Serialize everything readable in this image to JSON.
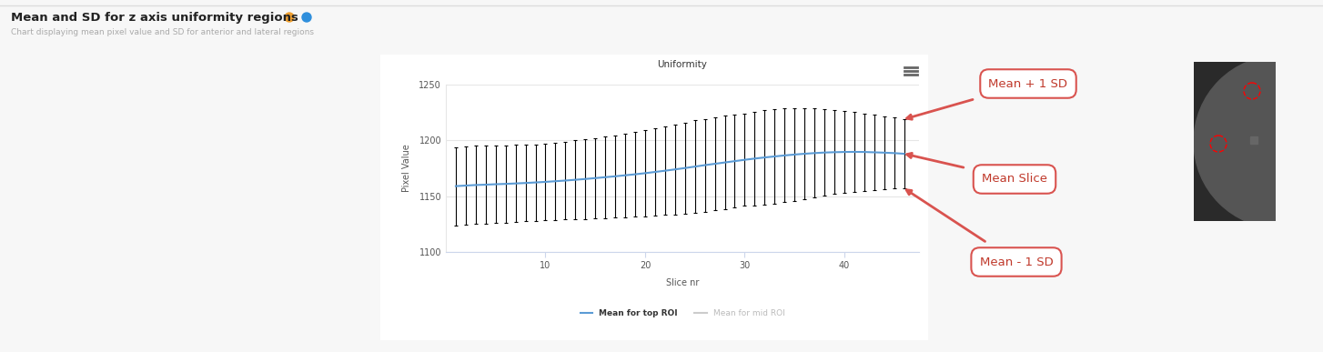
{
  "header": {
    "title": "Mean and SD for z axis uniformity regions",
    "subtitle": "Chart displaying mean pixel value and SD for anterior and lateral regions"
  },
  "chart_data": {
    "type": "line",
    "title": "Uniformity",
    "x_label": "Slice nr",
    "y_label": "Pixel Value",
    "x": [
      1,
      2,
      3,
      4,
      5,
      6,
      7,
      8,
      9,
      10,
      11,
      12,
      13,
      14,
      15,
      16,
      17,
      18,
      19,
      20,
      21,
      22,
      23,
      24,
      25,
      26,
      27,
      28,
      29,
      30,
      31,
      32,
      33,
      34,
      35,
      36,
      37,
      38,
      39,
      40,
      41,
      42,
      43,
      44,
      45,
      46
    ],
    "series": [
      {
        "name": "Mean for top ROI",
        "color": "#5b9bd5",
        "values": [
          1159,
          1159.5,
          1160,
          1160.3,
          1160.7,
          1161,
          1161.4,
          1161.8,
          1162.3,
          1162.8,
          1163.4,
          1164,
          1164.7,
          1165.4,
          1166.2,
          1167,
          1167.8,
          1168.7,
          1169.6,
          1170.6,
          1171.7,
          1172.8,
          1174,
          1175.2,
          1176.5,
          1177.8,
          1179,
          1180.2,
          1181.4,
          1182.6,
          1183.7,
          1184.7,
          1185.6,
          1186.5,
          1187.3,
          1188,
          1188.6,
          1189.1,
          1189.4,
          1189.6,
          1189.7,
          1189.6,
          1189.3,
          1189,
          1188.6,
          1188
        ],
        "sd": [
          35,
          35,
          35,
          34.8,
          34.7,
          34.6,
          34.5,
          34.4,
          34.3,
          34.2,
          34.5,
          34.9,
          35.3,
          35.7,
          36.1,
          36.5,
          36.9,
          37.4,
          37.9,
          38.4,
          39,
          39.6,
          40.2,
          40.8,
          41.5,
          41.6,
          41.7,
          41.8,
          41.6,
          41.4,
          41.8,
          42.2,
          42.4,
          42,
          41.4,
          40.6,
          39.8,
          38.6,
          37.5,
          36.4,
          35.5,
          34.6,
          33.7,
          32.8,
          31.9,
          31
        ]
      },
      {
        "name": "Mean for mid ROI",
        "color": "#cccccc",
        "values": [
          null,
          null,
          null,
          null,
          null,
          null,
          null,
          null,
          null,
          null,
          null,
          null,
          null,
          null,
          null,
          null,
          null,
          null,
          null,
          null,
          null,
          null,
          null,
          null,
          null,
          null,
          null,
          null,
          null,
          null,
          null,
          null,
          null,
          null,
          null,
          null,
          null,
          null,
          null,
          null,
          null,
          null,
          null,
          null,
          null,
          null
        ]
      }
    ],
    "xlim": [
      0,
      47.5
    ],
    "ylim": [
      1100,
      1250
    ],
    "xticks": [
      10,
      20,
      30,
      40
    ],
    "yticks": [
      1100,
      1150,
      1200,
      1250
    ],
    "grid": true,
    "legend": "bottom",
    "annotations": [
      "Mean + 1 SD",
      "Mean Slice",
      "Mean - 1 SD"
    ]
  }
}
